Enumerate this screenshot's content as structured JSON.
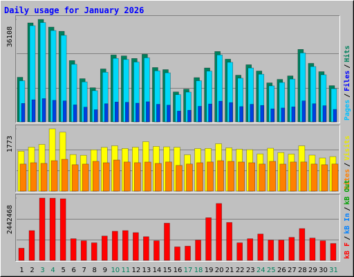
{
  "chart_data": {
    "type": "bar",
    "title": "Daily usage for January 2026",
    "categories": [
      "1",
      "2",
      "3",
      "4",
      "5",
      "6",
      "7",
      "8",
      "9",
      "10",
      "11",
      "12",
      "13",
      "14",
      "15",
      "16",
      "17",
      "18",
      "19",
      "20",
      "21",
      "22",
      "23",
      "24",
      "25",
      "26",
      "27",
      "28",
      "29",
      "30",
      "31"
    ],
    "category_colors": [
      "#000000",
      "#000000",
      "#00805c",
      "#00805c",
      "#000000",
      "#000000",
      "#000000",
      "#000000",
      "#000000",
      "#00805c",
      "#00805c",
      "#000000",
      "#000000",
      "#000000",
      "#000000",
      "#000000",
      "#00805c",
      "#00805c",
      "#000000",
      "#000000",
      "#000000",
      "#000000",
      "#000000",
      "#00805c",
      "#00805c",
      "#000000",
      "#000000",
      "#000000",
      "#000000",
      "#000000",
      "#00805c"
    ],
    "legend_separator": "/",
    "panels": [
      {
        "ylim": [
          0,
          36108
        ],
        "yticks": [
          36108
        ],
        "series": [
          {
            "name": "Hits",
            "color": "#00805c",
            "legend_color": "#00805c",
            "values": [
              15718,
              34875,
              36108,
              33402,
              31928,
              21613,
              15227,
              12034,
              18666,
              23578,
              23250,
              22350,
              23823,
              19157,
              18420,
              10561,
              11543,
              15600,
              19000,
              24806,
              22100,
              16455,
              20139,
              17929,
              13754,
              14982,
              16210,
              25542,
              20630,
              17700,
              12771
            ]
          },
          {
            "name": "Files",
            "color": "#00d8f8",
            "legend_color": "#0000ff",
            "values": [
              14500,
              33900,
              35000,
              32200,
              30500,
              20300,
              14100,
              11000,
              17500,
              22400,
              22000,
              21100,
              22600,
              18000,
              17300,
              9600,
              10500,
              14500,
              17900,
              23600,
              21000,
              15400,
              19000,
              16800,
              12700,
              13900,
              15100,
              24300,
              19500,
              16600,
              11700
            ]
          },
          {
            "name": "Pages",
            "color": "#0040e0",
            "legend_color": "#00c0ff",
            "values": [
              6500,
              7800,
              8200,
              7600,
              7400,
              6000,
              5200,
              4300,
              6400,
              7000,
              6900,
              6600,
              7100,
              6200,
              5900,
              3800,
              4100,
              5500,
              6300,
              7300,
              6800,
              5400,
              6200,
              5800,
              4600,
              4900,
              5300,
              7400,
              6400,
              5700,
              4400
            ]
          }
        ]
      },
      {
        "ylim": [
          0,
          1773
        ],
        "yticks": [
          1773
        ],
        "series": [
          {
            "name": "Visits",
            "color": "#ffff00",
            "legend_color": "#e8e800",
            "values": [
              1137,
              1253,
              1330,
              1773,
              1677,
              1041,
              1021,
              1176,
              1245,
              1291,
              1214,
              1250,
              1407,
              1272,
              1260,
              1248,
              1035,
              1210,
              1215,
              1349,
              1233,
              1195,
              1180,
              1060,
              1220,
              1098,
              1055,
              1290,
              1025,
              944,
              983
            ]
          },
          {
            "name": "Sites",
            "color": "#ff8000",
            "legend_color": "#ff8000",
            "values": [
              771,
              809,
              790,
              867,
              906,
              752,
              770,
              848,
              808,
              886,
              829,
              810,
              828,
              790,
              830,
              732,
              772,
              809,
              830,
              867,
              848,
              829,
              809,
              771,
              848,
              770,
              829,
              830,
              771,
              752,
              772
            ]
          }
        ]
      },
      {
        "ylim": [
          0,
          2442468
        ],
        "yticks": [
          2442468
        ],
        "series": [
          {
            "name": "kB F",
            "color": "#ff0000",
            "legend_color": "#ff0000",
            "values": [
              478000,
              1168000,
              2442468,
              2438000,
              2416000,
              850000,
              770000,
              690000,
              956000,
              1142000,
              1168000,
              1089000,
              929000,
              770000,
              1460000,
              531000,
              558000,
              796000,
              1673000,
              2230000,
              1487000,
              690000,
              850000,
              1035000,
              796000,
              797000,
              903000,
              1248000,
              876000,
              770000,
              664000
            ]
          }
        ],
        "extra_legend": [
          {
            "name": "kB In",
            "legend_color": "#0080ff"
          },
          {
            "name": "kB Out",
            "legend_color": "#00a000"
          }
        ]
      }
    ]
  }
}
